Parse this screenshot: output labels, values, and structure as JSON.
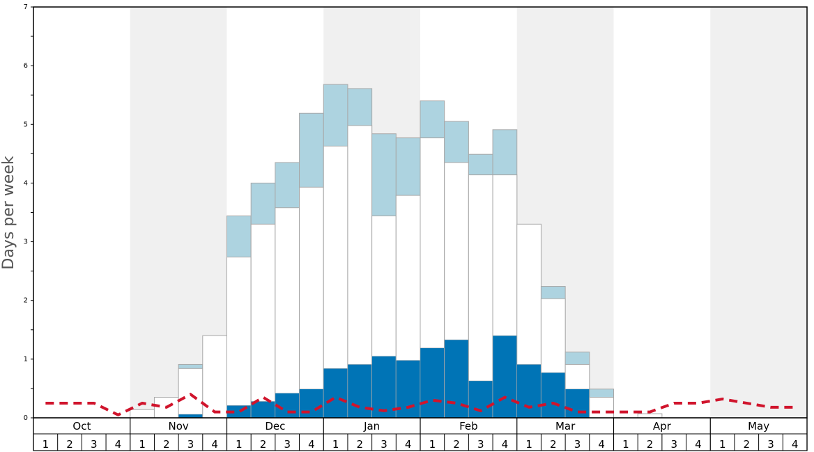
{
  "chart_data": {
    "type": "bar",
    "ylabel": "Days per week",
    "ylim": [
      0,
      7
    ],
    "yticks": [
      0,
      1,
      2,
      3,
      4,
      5,
      6,
      7
    ],
    "months": [
      "Oct",
      "Nov",
      "Dec",
      "Jan",
      "Feb",
      "Mar",
      "Apr",
      "May"
    ],
    "weeks_per_month": [
      "1",
      "2",
      "3",
      "4"
    ],
    "shaded_months": [
      "Nov",
      "Jan",
      "Mar",
      "May"
    ],
    "colors": {
      "dark": "#0074b6",
      "light": "#add3e0",
      "white": "#ffffff",
      "line": "#d0142c",
      "shade": "#f0f0f0",
      "bar_stroke": "#a8a8a8"
    },
    "series": [
      {
        "key": "dark",
        "values": [
          0,
          0,
          0,
          0,
          0,
          0,
          0.06,
          0,
          0.21,
          0.28,
          0.42,
          0.49,
          0.84,
          0.91,
          1.05,
          0.98,
          1.19,
          1.33,
          0.63,
          1.4,
          0.91,
          0.77,
          0.49,
          0,
          0,
          0,
          0,
          0,
          0,
          0,
          0,
          0
        ]
      },
      {
        "key": "white",
        "values": [
          0,
          0,
          0,
          0,
          0.14,
          0.35,
          0.84,
          1.4,
          2.74,
          3.3,
          3.58,
          3.93,
          4.63,
          4.98,
          3.44,
          3.79,
          4.77,
          4.35,
          4.14,
          4.14,
          3.3,
          2.03,
          0.91,
          0.35,
          0,
          0.07,
          0,
          0,
          0,
          0,
          0,
          0
        ]
      },
      {
        "key": "light",
        "values": [
          0,
          0,
          0,
          0,
          0,
          0,
          0.91,
          0,
          3.44,
          4.0,
          4.35,
          5.19,
          5.68,
          5.61,
          4.84,
          4.77,
          5.4,
          5.05,
          4.49,
          4.91,
          0,
          2.24,
          1.12,
          0.49,
          0,
          0,
          0,
          0,
          0,
          0,
          0,
          0
        ]
      },
      {
        "key": "line",
        "values": [
          0.25,
          0.25,
          0.25,
          0.05,
          0.25,
          0.18,
          0.4,
          0.1,
          0.1,
          0.35,
          0.1,
          0.1,
          0.35,
          0.18,
          0.12,
          0.18,
          0.3,
          0.25,
          0.12,
          0.35,
          0.18,
          0.25,
          0.1,
          0.1,
          0.1,
          0.1,
          0.25,
          0.25,
          0.32,
          0.25,
          0.18,
          0.18
        ]
      }
    ]
  }
}
